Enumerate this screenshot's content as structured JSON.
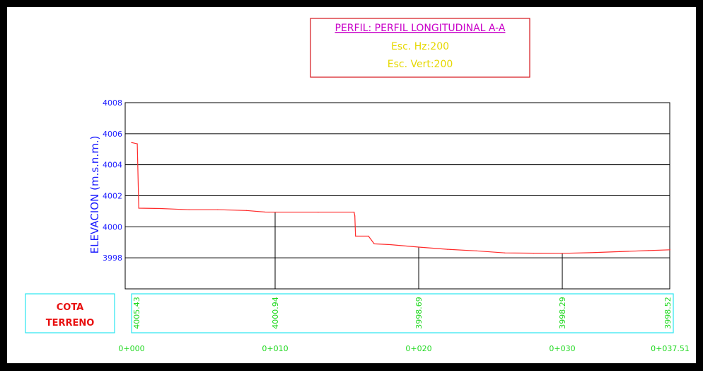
{
  "title_block": {
    "title": "PERFIL:  PERFIL  LONGITUDINAL  A-A",
    "scale_h": "Esc. Hz:200",
    "scale_v": "Esc. Vert:200"
  },
  "table": {
    "row_label_line1": "COTA",
    "row_label_line2": "TERRENO"
  },
  "colors": {
    "frame": "#000000",
    "title_box": "#d4141b",
    "title_text": "#c800c8",
    "scale_text": "#e6d800",
    "axis_text": "#1a1aff",
    "profile": "#ff2a2a",
    "table_border": "#29e6f0",
    "station_text": "#1fd81f",
    "label_text": "#e81010",
    "grid": "#000000"
  },
  "chart_data": {
    "type": "line",
    "title": "PERFIL:  PERFIL  LONGITUDINAL  A-A",
    "ylabel": "ELEVACION (m.s.n.m.)",
    "xlabel": "",
    "xlim": [
      0,
      37.51
    ],
    "ylim": [
      3996,
      4008
    ],
    "yticks": [
      3998,
      4000,
      4002,
      4004,
      4006,
      4008
    ],
    "grid": true,
    "stations": [
      {
        "x": 0,
        "label": "0+000",
        "elevation_label": "4005.43"
      },
      {
        "x": 10,
        "label": "0+010",
        "elevation_label": "4000.94"
      },
      {
        "x": 20,
        "label": "0+020",
        "elevation_label": "3998.69"
      },
      {
        "x": 30,
        "label": "0+030",
        "elevation_label": "3998.29"
      },
      {
        "x": 37.51,
        "label": "0+037.51",
        "elevation_label": "3998.52"
      }
    ],
    "series": [
      {
        "points": [
          [
            0,
            4005.43
          ],
          [
            0.4,
            4005.35
          ],
          [
            0.5,
            4001.2
          ],
          [
            2,
            4001.18
          ],
          [
            4,
            4001.1
          ],
          [
            6,
            4001.1
          ],
          [
            8,
            4001.05
          ],
          [
            9.3,
            4000.95
          ],
          [
            10,
            4000.94
          ],
          [
            13,
            4000.94
          ],
          [
            15.5,
            4000.94
          ],
          [
            15.55,
            4000.7
          ],
          [
            15.6,
            3999.4
          ],
          [
            16.5,
            3999.4
          ],
          [
            16.9,
            3998.9
          ],
          [
            18,
            3998.85
          ],
          [
            20,
            3998.69
          ],
          [
            22,
            3998.55
          ],
          [
            24,
            3998.45
          ],
          [
            26,
            3998.32
          ],
          [
            28,
            3998.3
          ],
          [
            30,
            3998.29
          ],
          [
            32,
            3998.33
          ],
          [
            34,
            3998.4
          ],
          [
            36,
            3998.47
          ],
          [
            37.51,
            3998.52
          ]
        ]
      }
    ]
  }
}
